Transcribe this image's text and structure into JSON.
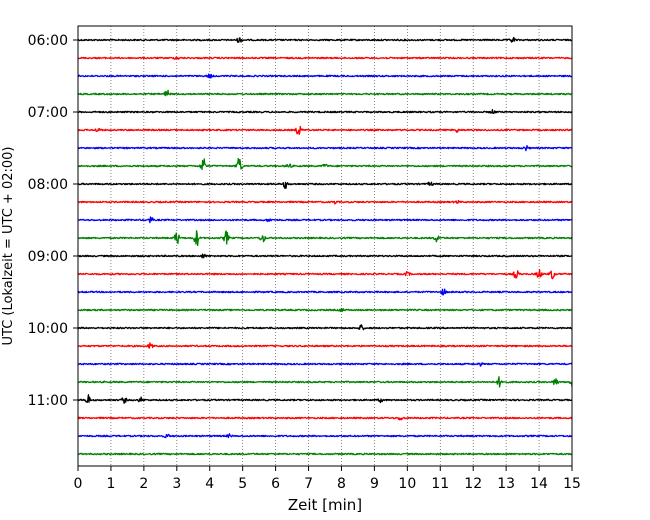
{
  "chart_data": {
    "type": "line",
    "title": "",
    "xlabel": "Zeit  [min]",
    "ylabel": "UTC (Lokalzeit = UTC + 02:00)",
    "xlim": [
      0,
      15
    ],
    "x_ticks": [
      0,
      1,
      2,
      3,
      4,
      5,
      6,
      7,
      8,
      9,
      10,
      11,
      12,
      13,
      14,
      15
    ],
    "x_tick_labels": [
      "0",
      "1",
      "2",
      "3",
      "4",
      "5",
      "6",
      "7",
      "8",
      "9",
      "10",
      "11",
      "12",
      "13",
      "14",
      "15"
    ],
    "y_tick_labels": [
      "06:00",
      "07:00",
      "08:00",
      "09:00",
      "10:00",
      "11:00"
    ],
    "y_ticks_at_trace": [
      0,
      4,
      8,
      12,
      16,
      20
    ],
    "minutes_per_trace": 15,
    "grid": {
      "x": true,
      "y": false,
      "style": "dotted"
    },
    "trace_colors": [
      "#000000",
      "#ff0000",
      "#0000ff",
      "#008000"
    ],
    "traces": [
      {
        "start": "06:00",
        "color": "#000000",
        "events": [
          {
            "t": 4.9,
            "amp": 3
          },
          {
            "t": 13.2,
            "amp": 3
          }
        ]
      },
      {
        "start": "06:15",
        "color": "#ff0000",
        "events": [
          {
            "t": 3.0,
            "amp": 1.5
          }
        ]
      },
      {
        "start": "06:30",
        "color": "#0000ff",
        "events": [
          {
            "t": 4.0,
            "amp": 2
          }
        ]
      },
      {
        "start": "06:45",
        "color": "#008000",
        "events": [
          {
            "t": 2.7,
            "amp": 4
          }
        ]
      },
      {
        "start": "07:00",
        "color": "#000000",
        "events": [
          {
            "t": 12.6,
            "amp": 2
          }
        ]
      },
      {
        "start": "07:15",
        "color": "#ff0000",
        "events": [
          {
            "t": 0.6,
            "amp": 2
          },
          {
            "t": 6.7,
            "amp": 6
          },
          {
            "t": 11.5,
            "amp": 2
          }
        ]
      },
      {
        "start": "07:30",
        "color": "#0000ff",
        "events": [
          {
            "t": 13.6,
            "amp": 2.5
          }
        ]
      },
      {
        "start": "07:45",
        "color": "#008000",
        "events": [
          {
            "t": 3.8,
            "amp": 9
          },
          {
            "t": 4.9,
            "amp": 11
          },
          {
            "t": 6.4,
            "amp": 2.5
          },
          {
            "t": 7.5,
            "amp": 2
          }
        ]
      },
      {
        "start": "08:00",
        "color": "#000000",
        "events": [
          {
            "t": 6.3,
            "amp": 4
          },
          {
            "t": 10.7,
            "amp": 2
          }
        ]
      },
      {
        "start": "08:15",
        "color": "#ff0000",
        "events": [
          {
            "t": 7.8,
            "amp": 1.5
          },
          {
            "t": 11.5,
            "amp": 1.5
          }
        ]
      },
      {
        "start": "08:30",
        "color": "#0000ff",
        "events": [
          {
            "t": 2.2,
            "amp": 3
          },
          {
            "t": 5.8,
            "amp": 1.5
          }
        ]
      },
      {
        "start": "08:45",
        "color": "#008000",
        "events": [
          {
            "t": 3.0,
            "amp": 7
          },
          {
            "t": 3.6,
            "amp": 9
          },
          {
            "t": 4.5,
            "amp": 7
          },
          {
            "t": 5.6,
            "amp": 5
          },
          {
            "t": 10.9,
            "amp": 4
          }
        ]
      },
      {
        "start": "09:00",
        "color": "#000000",
        "events": [
          {
            "t": 3.8,
            "amp": 2
          }
        ]
      },
      {
        "start": "09:15",
        "color": "#ff0000",
        "events": [
          {
            "t": 10.0,
            "amp": 2
          },
          {
            "t": 13.3,
            "amp": 5
          },
          {
            "t": 14.0,
            "amp": 5
          },
          {
            "t": 14.4,
            "amp": 5
          }
        ]
      },
      {
        "start": "09:30",
        "color": "#0000ff",
        "events": [
          {
            "t": 11.1,
            "amp": 3
          }
        ]
      },
      {
        "start": "09:45",
        "color": "#008000",
        "events": [
          {
            "t": 8.0,
            "amp": 1.5
          }
        ]
      },
      {
        "start": "10:00",
        "color": "#000000",
        "events": [
          {
            "t": 8.6,
            "amp": 3
          }
        ]
      },
      {
        "start": "10:15",
        "color": "#ff0000",
        "events": [
          {
            "t": 2.2,
            "amp": 3
          }
        ]
      },
      {
        "start": "10:30",
        "color": "#0000ff",
        "events": [
          {
            "t": 12.2,
            "amp": 1.5
          }
        ]
      },
      {
        "start": "10:45",
        "color": "#008000",
        "events": [
          {
            "t": 12.8,
            "amp": 5
          },
          {
            "t": 14.5,
            "amp": 4
          },
          {
            "t": 15.0,
            "amp": 4
          }
        ]
      },
      {
        "start": "11:00",
        "color": "#000000",
        "events": [
          {
            "t": 0.3,
            "amp": 5
          },
          {
            "t": 1.4,
            "amp": 3
          },
          {
            "t": 1.9,
            "amp": 2.5
          },
          {
            "t": 9.2,
            "amp": 2
          }
        ]
      },
      {
        "start": "11:15",
        "color": "#ff0000",
        "events": [
          {
            "t": 9.8,
            "amp": 2.5
          }
        ]
      },
      {
        "start": "11:30",
        "color": "#0000ff",
        "events": [
          {
            "t": 2.7,
            "amp": 2
          },
          {
            "t": 4.6,
            "amp": 1.5
          }
        ]
      },
      {
        "start": "11:45",
        "color": "#008000",
        "events": []
      }
    ]
  }
}
